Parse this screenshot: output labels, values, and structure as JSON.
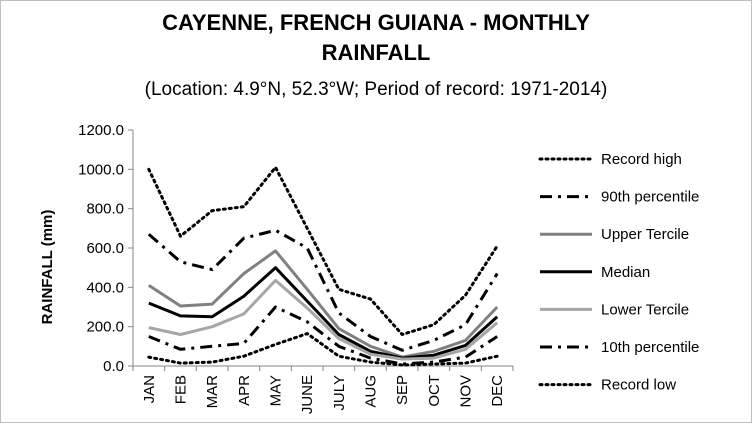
{
  "chart_data": {
    "type": "line",
    "title_line1": "CAYENNE, FRENCH GUIANA - MONTHLY",
    "title_line2": "RAINFALL",
    "subtitle": "(Location: 4.9°N, 52.3°W; Period of record: 1971-2014)",
    "ylabel": "RAINFALL (mm)",
    "xlabel": "",
    "ylim": [
      0,
      1200
    ],
    "yticks": [
      "0.0",
      "200.0",
      "400.0",
      "600.0",
      "800.0",
      "1000.0",
      "1200.0"
    ],
    "ytick_values": [
      0,
      200,
      400,
      600,
      800,
      1000,
      1200
    ],
    "categories": [
      "JAN",
      "FEB",
      "MAR",
      "APR",
      "MAY",
      "JUNE",
      "JULY",
      "AUG",
      "SEP",
      "OCT",
      "NOV",
      "DEC"
    ],
    "grid": "none",
    "legend_position": "right",
    "series": [
      {
        "name": "Record high",
        "style": "dotted",
        "color": "#000000",
        "values": [
          1000,
          660,
          790,
          810,
          1010,
          700,
          390,
          340,
          160,
          210,
          360,
          610
        ]
      },
      {
        "name": "90th percentile",
        "style": "dashdot",
        "color": "#000000",
        "values": [
          670,
          530,
          490,
          650,
          690,
          600,
          270,
          150,
          80,
          130,
          210,
          470
        ]
      },
      {
        "name": "Upper Tercile",
        "style": "solid",
        "color": "#808080",
        "values": [
          410,
          305,
          315,
          470,
          585,
          390,
          190,
          100,
          45,
          75,
          130,
          300
        ]
      },
      {
        "name": "Median",
        "style": "solid",
        "color": "#000000",
        "values": [
          320,
          255,
          250,
          355,
          500,
          330,
          160,
          75,
          40,
          55,
          105,
          250
        ]
      },
      {
        "name": "Lower Tercile",
        "style": "solid",
        "color": "#a6a6a6",
        "values": [
          195,
          160,
          200,
          265,
          435,
          295,
          140,
          60,
          35,
          40,
          85,
          220
        ]
      },
      {
        "name": "10th percentile",
        "style": "dashdot",
        "color": "#000000",
        "values": [
          150,
          85,
          100,
          115,
          300,
          225,
          100,
          40,
          10,
          20,
          45,
          150
        ]
      },
      {
        "name": "Record low",
        "style": "dotted",
        "color": "#000000",
        "values": [
          45,
          15,
          20,
          50,
          110,
          165,
          50,
          20,
          5,
          10,
          15,
          50
        ]
      }
    ]
  }
}
